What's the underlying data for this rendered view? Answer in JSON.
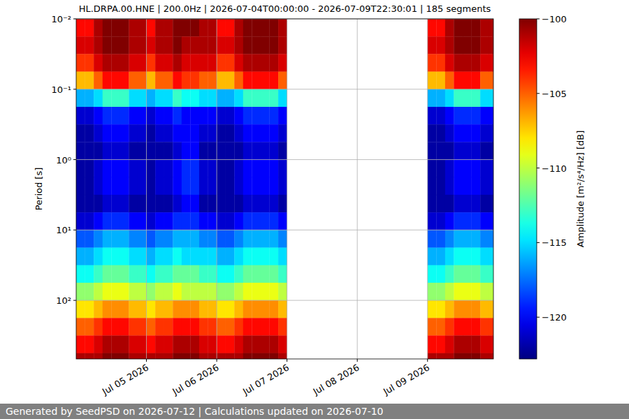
{
  "chart_data": {
    "type": "heatmap",
    "title": "HL.DRPA.00.HNE | 200.0Hz | 2026-07-04T00:00:00 - 2026-07-09T22:30:01 | 185 segments",
    "footer": "Generated by SeedPSD on 2026-07-12 | Calculations updated on 2026-07-10",
    "y_label": "Period [s]",
    "log": "y",
    "grid": true,
    "xlim": [
      "2026-07-04T00:00:00",
      "2026-07-09T22:30:01"
    ],
    "xticks": [
      {
        "value": "2026-07-05T00:00:00",
        "label": "Jul 05 2026"
      },
      {
        "value": "2026-07-06T00:00:00",
        "label": "Jul 06 2026"
      },
      {
        "value": "2026-07-07T00:00:00",
        "label": "Jul 07 2026"
      },
      {
        "value": "2026-07-08T00:00:00",
        "label": "Jul 08 2026"
      },
      {
        "value": "2026-07-09T00:00:00",
        "label": "Jul 09 2026"
      }
    ],
    "ylim": [
      0.01,
      680
    ],
    "yticks": [
      {
        "value": 0.01,
        "label": "10⁻²"
      },
      {
        "value": 0.1,
        "label": "10⁻¹"
      },
      {
        "value": 1,
        "label": "10⁰"
      },
      {
        "value": 10,
        "label": "10¹"
      },
      {
        "value": 100,
        "label": "10²"
      }
    ],
    "x": [
      "2026-07-04T00:00:00",
      "2026-07-04T03:00:00",
      "2026-07-04T06:00:00",
      "2026-07-04T09:00:00",
      "2026-07-04T12:00:00",
      "2026-07-04T15:00:00",
      "2026-07-04T18:00:00",
      "2026-07-04T21:00:00",
      "2026-07-05T00:00:00",
      "2026-07-05T03:00:00",
      "2026-07-05T06:00:00",
      "2026-07-05T09:00:00",
      "2026-07-05T12:00:00",
      "2026-07-05T15:00:00",
      "2026-07-05T18:00:00",
      "2026-07-05T21:00:00",
      "2026-07-06T00:00:00",
      "2026-07-06T03:00:00",
      "2026-07-06T06:00:00",
      "2026-07-06T09:00:00",
      "2026-07-06T12:00:00",
      "2026-07-06T15:00:00",
      "2026-07-06T18:00:00",
      "2026-07-06T21:00:00",
      "2026-07-09T00:00:00",
      "2026-07-09T03:00:00",
      "2026-07-09T06:00:00",
      "2026-07-09T09:00:00",
      "2026-07-09T12:00:00",
      "2026-07-09T15:00:00",
      "2026-07-09T18:00:00",
      "2026-07-09T21:00:00"
    ],
    "x_end": [
      "2026-07-04T03:00:00",
      "2026-07-04T06:00:00",
      "2026-07-04T09:00:00",
      "2026-07-04T12:00:00",
      "2026-07-04T15:00:00",
      "2026-07-04T18:00:00",
      "2026-07-04T21:00:00",
      "2026-07-05T00:00:00",
      "2026-07-05T03:00:00",
      "2026-07-05T06:00:00",
      "2026-07-05T09:00:00",
      "2026-07-05T12:00:00",
      "2026-07-05T15:00:00",
      "2026-07-05T18:00:00",
      "2026-07-05T21:00:00",
      "2026-07-06T00:00:00",
      "2026-07-06T03:00:00",
      "2026-07-06T06:00:00",
      "2026-07-06T09:00:00",
      "2026-07-06T12:00:00",
      "2026-07-06T15:00:00",
      "2026-07-06T18:00:00",
      "2026-07-06T21:00:00",
      "2026-07-07T00:00:00",
      "2026-07-09T03:00:00",
      "2026-07-09T06:00:00",
      "2026-07-09T09:00:00",
      "2026-07-09T12:00:00",
      "2026-07-09T15:00:00",
      "2026-07-09T18:00:00",
      "2026-07-09T21:00:00",
      "2026-07-09T22:30:01"
    ],
    "y_edges": [
      0.01,
      0.0178,
      0.0316,
      0.0562,
      0.1,
      0.178,
      0.316,
      0.562,
      1,
      1.78,
      3.16,
      5.62,
      10,
      17.8,
      31.6,
      56.2,
      100,
      178,
      316,
      562,
      680
    ],
    "cells": [
      [
        -103,
        -102,
        -104,
        -107,
        -116,
        -121,
        -122,
        -122,
        -122,
        -122,
        -122,
        -121,
        -118,
        -116,
        -114,
        -111,
        -108,
        -105,
        -103,
        -101
      ],
      [
        -103,
        -102,
        -104,
        -107,
        -116,
        -121,
        -122,
        -122,
        -122,
        -122,
        -122,
        -121,
        -118,
        -116,
        -114,
        -111,
        -108,
        -105,
        -103,
        -101
      ],
      [
        -101,
        -101,
        -102,
        -105,
        -115,
        -120,
        -121,
        -122,
        -121,
        -121,
        -122,
        -120,
        -117,
        -115,
        -113,
        -110,
        -107,
        -104,
        -102,
        -101
      ],
      [
        -100,
        -100,
        -101,
        -103,
        -113,
        -119,
        -120,
        -121,
        -120,
        -120,
        -121,
        -119,
        -116,
        -114,
        -112,
        -109,
        -106,
        -103,
        -101,
        -100
      ],
      [
        -100,
        -100,
        -101,
        -103,
        -113,
        -119,
        -120,
        -121,
        -120,
        -120,
        -121,
        -119,
        -116,
        -114,
        -112,
        -109,
        -106,
        -103,
        -101,
        -100
      ],
      [
        -100,
        -100,
        -101,
        -103,
        -113,
        -119,
        -120,
        -121,
        -120,
        -120,
        -121,
        -119,
        -116,
        -114,
        -112,
        -109,
        -106,
        -103,
        -101,
        -100
      ],
      [
        -101,
        -101,
        -102,
        -105,
        -115,
        -120,
        -121,
        -122,
        -121,
        -121,
        -122,
        -120,
        -117,
        -115,
        -113,
        -110,
        -107,
        -104,
        -102,
        -101
      ],
      [
        -101,
        -101,
        -102,
        -105,
        -115,
        -120,
        -121,
        -122,
        -121,
        -121,
        -122,
        -120,
        -117,
        -115,
        -113,
        -110,
        -107,
        -104,
        -102,
        -101
      ],
      [
        -103,
        -102,
        -104,
        -107,
        -116,
        -121,
        -122,
        -122,
        -122,
        -122,
        -122,
        -121,
        -118,
        -116,
        -114,
        -111,
        -108,
        -105,
        -103,
        -101
      ],
      [
        -101,
        -101,
        -102,
        -105,
        -115,
        -120,
        -121,
        -122,
        -121,
        -121,
        -122,
        -120,
        -117,
        -115,
        -113,
        -110,
        -107,
        -104,
        -102,
        -101
      ],
      [
        -101,
        -101,
        -102,
        -105,
        -115,
        -120,
        -121,
        -122,
        -121,
        -121,
        -122,
        -120,
        -117,
        -115,
        -113,
        -110,
        -107,
        -104,
        -102,
        -101
      ],
      [
        -100,
        -100,
        -101,
        -103,
        -113,
        -119,
        -120,
        -121,
        -120,
        -120,
        -121,
        -119,
        -116,
        -114,
        -112,
        -109,
        -106,
        -103,
        -101,
        -100
      ],
      [
        -100,
        -101,
        -102,
        -104,
        -114,
        -120,
        -120,
        -120,
        -119,
        -119,
        -120,
        -119,
        -116,
        -115,
        -112,
        -110,
        -106,
        -103,
        -101,
        -100
      ],
      [
        -100,
        -101,
        -102,
        -104,
        -114,
        -120,
        -120,
        -120,
        -119,
        -119,
        -120,
        -119,
        -116,
        -115,
        -112,
        -110,
        -106,
        -103,
        -101,
        -100
      ],
      [
        -101,
        -101,
        -102,
        -105,
        -115,
        -120,
        -121,
        -122,
        -121,
        -121,
        -122,
        -120,
        -117,
        -115,
        -113,
        -110,
        -107,
        -104,
        -102,
        -101
      ],
      [
        -101,
        -101,
        -102,
        -105,
        -115,
        -120,
        -121,
        -122,
        -121,
        -121,
        -122,
        -120,
        -117,
        -115,
        -113,
        -110,
        -107,
        -104,
        -102,
        -101
      ],
      [
        -103,
        -102,
        -104,
        -107,
        -116,
        -121,
        -122,
        -122,
        -122,
        -122,
        -122,
        -121,
        -118,
        -116,
        -114,
        -111,
        -108,
        -105,
        -103,
        -101
      ],
      [
        -103,
        -102,
        -104,
        -107,
        -116,
        -121,
        -122,
        -122,
        -122,
        -122,
        -122,
        -121,
        -118,
        -116,
        -114,
        -111,
        -108,
        -105,
        -103,
        -101
      ],
      [
        -101,
        -101,
        -102,
        -105,
        -115,
        -120,
        -121,
        -122,
        -121,
        -121,
        -122,
        -120,
        -117,
        -115,
        -113,
        -110,
        -107,
        -104,
        -102,
        -101
      ],
      [
        -100,
        -100,
        -101,
        -103,
        -113,
        -119,
        -120,
        -121,
        -120,
        -120,
        -121,
        -119,
        -116,
        -114,
        -112,
        -109,
        -106,
        -103,
        -101,
        -100
      ],
      [
        -100,
        -100,
        -101,
        -103,
        -113,
        -119,
        -120,
        -121,
        -120,
        -120,
        -121,
        -119,
        -116,
        -114,
        -112,
        -109,
        -106,
        -103,
        -101,
        -100
      ],
      [
        -100,
        -100,
        -101,
        -103,
        -113,
        -119,
        -120,
        -121,
        -120,
        -120,
        -121,
        -119,
        -116,
        -114,
        -112,
        -109,
        -106,
        -103,
        -101,
        -100
      ],
      [
        -100,
        -100,
        -101,
        -103,
        -113,
        -119,
        -120,
        -121,
        -120,
        -120,
        -121,
        -119,
        -116,
        -114,
        -112,
        -109,
        -106,
        -103,
        -101,
        -100
      ],
      [
        -101,
        -101,
        -102,
        -105,
        -115,
        -120,
        -121,
        -122,
        -121,
        -121,
        -122,
        -120,
        -117,
        -115,
        -113,
        -110,
        -107,
        -104,
        -102,
        -101
      ],
      [
        -103,
        -102,
        -104,
        -107,
        -116,
        -121,
        -122,
        -122,
        -122,
        -122,
        -122,
        -121,
        -118,
        -116,
        -114,
        -111,
        -108,
        -105,
        -103,
        -101
      ],
      [
        -103,
        -102,
        -104,
        -107,
        -116,
        -121,
        -122,
        -122,
        -122,
        -122,
        -122,
        -121,
        -118,
        -116,
        -114,
        -111,
        -108,
        -105,
        -103,
        -101
      ],
      [
        -101,
        -101,
        -102,
        -105,
        -115,
        -120,
        -121,
        -122,
        -121,
        -121,
        -122,
        -120,
        -117,
        -115,
        -113,
        -110,
        -107,
        -104,
        -102,
        -101
      ],
      [
        -100,
        -100,
        -101,
        -103,
        -113,
        -119,
        -120,
        -121,
        -120,
        -120,
        -121,
        -119,
        -116,
        -114,
        -112,
        -109,
        -106,
        -103,
        -101,
        -100
      ],
      [
        -100,
        -100,
        -101,
        -103,
        -113,
        -119,
        -120,
        -121,
        -120,
        -120,
        -121,
        -119,
        -116,
        -114,
        -112,
        -109,
        -106,
        -103,
        -101,
        -100
      ],
      [
        -100,
        -100,
        -101,
        -103,
        -113,
        -119,
        -120,
        -121,
        -120,
        -120,
        -121,
        -119,
        -116,
        -114,
        -112,
        -109,
        -106,
        -103,
        -101,
        -100
      ],
      [
        -101,
        -101,
        -102,
        -105,
        -115,
        -120,
        -121,
        -122,
        -121,
        -121,
        -122,
        -120,
        -117,
        -115,
        -113,
        -110,
        -107,
        -104,
        -102,
        -101
      ],
      [
        -101,
        -101,
        -102,
        -105,
        -115,
        -120,
        -121,
        -122,
        -121,
        -121,
        -122,
        -120,
        -117,
        -115,
        -113,
        -110,
        -107,
        -104,
        -102,
        -101
      ]
    ],
    "colorbar": {
      "label": "Amplitude [m²/s⁴/Hz] [dB]",
      "lim": [
        -122.8,
        -100
      ],
      "ticks": [
        {
          "value": -100,
          "label": "−100"
        },
        {
          "value": -105,
          "label": "−105"
        },
        {
          "value": -110,
          "label": "−110"
        },
        {
          "value": -115,
          "label": "−115"
        },
        {
          "value": -120,
          "label": "−120"
        }
      ]
    }
  }
}
